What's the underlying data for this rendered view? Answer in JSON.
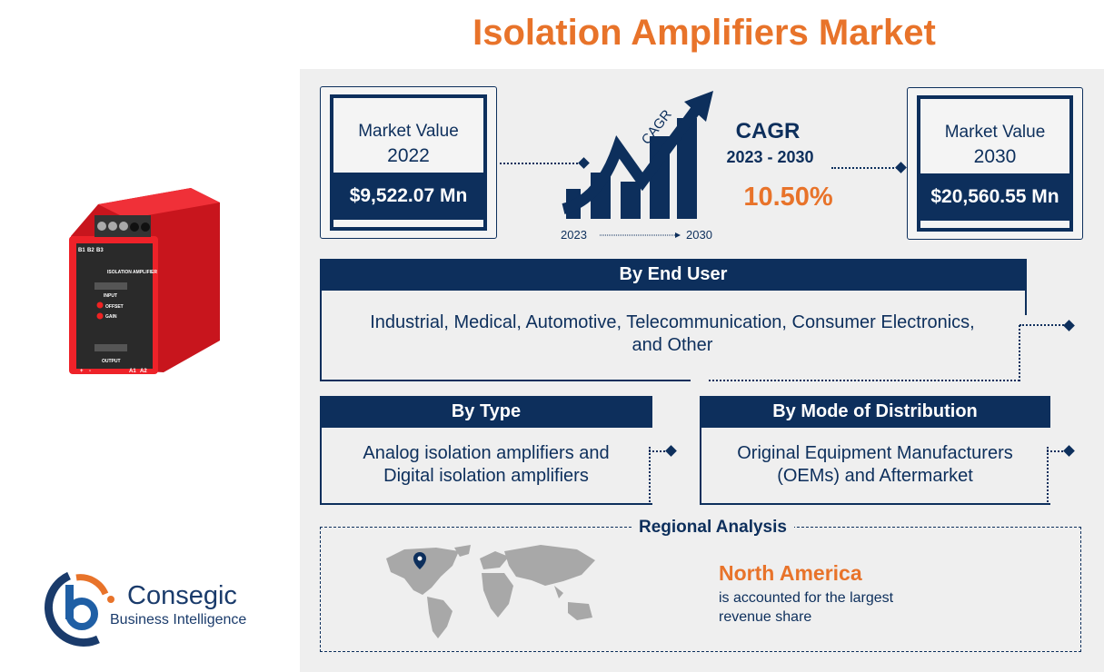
{
  "title": "Isolation Amplifiers Market",
  "market_2022": {
    "label": "Market Value",
    "year": "2022",
    "value": "$9,522.07 Mn"
  },
  "market_2030": {
    "label": "Market Value",
    "year": "2030",
    "value": "$20,560.55 Mn"
  },
  "cagr": {
    "graphic_label": "CAGR",
    "start": "2023",
    "end": "2030",
    "title": "CAGR",
    "period": "2023 - 2030",
    "value": "10.50%"
  },
  "end_user": {
    "title": "By End User",
    "text": "Industrial, Medical, Automotive, Telecommunication, Consumer Electronics, and Other"
  },
  "type": {
    "title": "By Type",
    "text": "Analog isolation amplifiers and Digital isolation amplifiers"
  },
  "distribution": {
    "title": "By Mode of Distribution",
    "text": "Original Equipment Manufacturers (OEMs) and Aftermarket"
  },
  "regional": {
    "title": "Regional Analysis",
    "region": "North America",
    "text": "is accounted for the largest revenue share"
  },
  "product_labels": [
    "B1",
    "B2",
    "B3",
    "ISOLATION AMPLIFIER",
    "INPUT",
    "OFFSET",
    "GAIN",
    "OUTPUT",
    "+",
    "-",
    "A1",
    "A2"
  ],
  "logo": {
    "name": "Consegic",
    "sub": "Business Intelligence"
  },
  "colors": {
    "navy": "#0d2f5c",
    "orange": "#e8732a",
    "panel": "#efefef",
    "product_red": "#e8202a"
  }
}
